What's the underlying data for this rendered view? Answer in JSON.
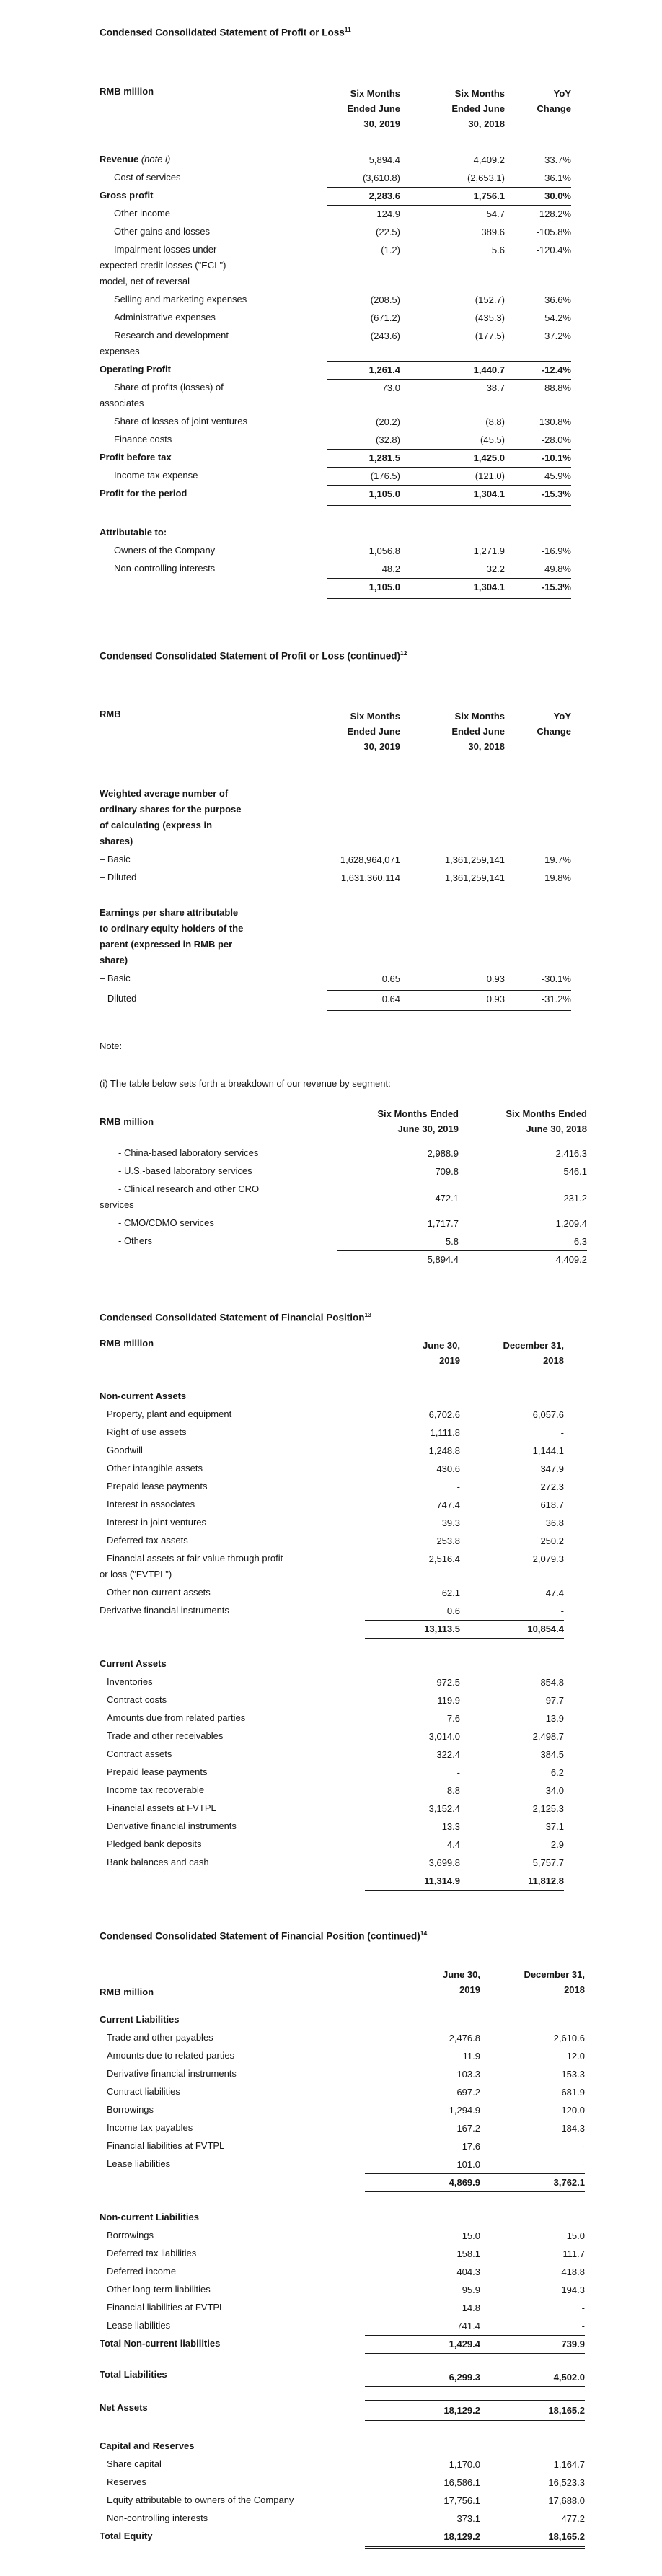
{
  "document_title": "Condensed Consolidated Financial Statements",
  "text_color": "#161616",
  "rule_color": "#1b1b1b",
  "sections": [
    {
      "type": "title",
      "name": "profit-loss-title",
      "text": "Condensed Consolidated Statement of Profit or Loss",
      "sup": "11"
    },
    {
      "type": "gap",
      "h": 64
    },
    {
      "type": "table",
      "name": "profit-loss-table",
      "label_w": 315,
      "cols": [
        102,
        145,
        92
      ],
      "indent": 20,
      "header": {
        "label": "RMB million",
        "mb": 28,
        "align": "top",
        "cols": [
          [
            "Six Months",
            "Ended June",
            "30, 2019"
          ],
          [
            "Six Months",
            "Ended June",
            "30, 2018"
          ],
          [
            "YoY",
            "Change"
          ]
        ]
      },
      "rows": [
        {
          "l": "Revenue",
          "note": " (note i)",
          "lb": true,
          "v": [
            "5,894.4",
            "4,409.2",
            "33.7%"
          ]
        },
        {
          "l": "Cost of services",
          "i": 1,
          "v": [
            "(3,610.8)",
            "(2,653.1)",
            "36.1%"
          ],
          "rb": "s"
        },
        {
          "l": "Gross profit",
          "b": true,
          "v": [
            "2,283.6",
            "1,756.1",
            "30.0%"
          ],
          "rb": "s"
        },
        {
          "l": "Other income",
          "i": 1,
          "v": [
            "124.9",
            "54.7",
            "128.2%"
          ]
        },
        {
          "l": "Other gains and losses",
          "i": 1,
          "v": [
            "(22.5)",
            "389.6",
            "-105.8%"
          ]
        },
        {
          "l": "Impairment losses under",
          "cont": [
            "expected credit losses (\"ECL\")",
            "model, net of reversal"
          ],
          "i": 1,
          "v": [
            "(1.2)",
            "5.6",
            "-120.4%"
          ]
        },
        {
          "l": "Selling and marketing expenses",
          "i": 1,
          "v": [
            "(208.5)",
            "(152.7)",
            "36.6%"
          ]
        },
        {
          "l": "Administrative expenses",
          "i": 1,
          "v": [
            "(671.2)",
            "(435.3)",
            "54.2%"
          ]
        },
        {
          "l": "Research and development",
          "cont": [
            "expenses"
          ],
          "i": 1,
          "v": [
            "(243.6)",
            "(177.5)",
            "37.2%"
          ],
          "rb": "s"
        },
        {
          "l": "Operating Profit",
          "b": true,
          "v": [
            "1,261.4",
            "1,440.7",
            "-12.4%"
          ],
          "rb": "s"
        },
        {
          "l": "Share of profits (losses) of",
          "cont": [
            "associates"
          ],
          "i": 1,
          "v": [
            "73.0",
            "38.7",
            "88.8%"
          ]
        },
        {
          "l": "Share of losses of joint ventures",
          "i": 1,
          "v": [
            "(20.2)",
            "(8.8)",
            "130.8%"
          ]
        },
        {
          "l": "Finance costs",
          "i": 1,
          "v": [
            "(32.8)",
            "(45.5)",
            "-28.0%"
          ],
          "rb": "s"
        },
        {
          "l": "Profit before tax",
          "b": true,
          "v": [
            "1,281.5",
            "1,425.0",
            "-10.1%"
          ],
          "rb": "s"
        },
        {
          "l": "Income tax expense",
          "i": 1,
          "v": [
            "(176.5)",
            "(121.0)",
            "45.9%"
          ],
          "rb": "s"
        },
        {
          "l": "Profit for the period",
          "b": true,
          "v": [
            "1,105.0",
            "1,304.1",
            "-15.3%"
          ],
          "rb": "d"
        },
        {
          "gap": 26
        },
        {
          "l": "Attributable to:",
          "b": true
        },
        {
          "l": "Owners of the Company",
          "i": 1,
          "v": [
            "1,056.8",
            "1,271.9",
            "-16.9%"
          ]
        },
        {
          "l": "Non-controlling interests",
          "i": 1,
          "v": [
            "48.2",
            "32.2",
            "49.8%"
          ],
          "rb": "s"
        },
        {
          "b": true,
          "v": [
            "1,105.0",
            "1,304.1",
            "-15.3%"
          ],
          "rb": "d"
        }
      ]
    },
    {
      "type": "gap",
      "h": 66
    },
    {
      "type": "title",
      "name": "profit-loss-continued-title",
      "text": "Condensed Consolidated Statement of Profit or Loss (continued)",
      "sup": "12"
    },
    {
      "type": "gap",
      "h": 64
    },
    {
      "type": "table",
      "name": "profit-loss-continued-table",
      "label_w": 315,
      "cols": [
        102,
        145,
        92
      ],
      "indent": 20,
      "header": {
        "label": "RMB",
        "mb": 44,
        "align": "top",
        "cols": [
          [
            "Six Months",
            "Ended June",
            "30, 2019"
          ],
          [
            "Six Months",
            "Ended June",
            "30, 2018"
          ],
          [
            "YoY",
            "Change"
          ]
        ]
      },
      "rows": [
        {
          "l": "Weighted average number of",
          "cont": [
            "ordinary shares for the purpose",
            "of calculating (express in",
            "shares)"
          ],
          "lb": true
        },
        {
          "l": "– Basic",
          "v": [
            "1,628,964,071",
            "1,361,259,141",
            "19.7%"
          ]
        },
        {
          "l": "– Diluted",
          "v": [
            "1,631,360,114",
            "1,361,259,141",
            "19.8%"
          ]
        },
        {
          "gap": 24
        },
        {
          "l": "Earnings per share attributable",
          "cont": [
            "to ordinary equity holders of the",
            "parent (expressed in RMB per",
            "share)"
          ],
          "lb": true
        },
        {
          "l": "– Basic",
          "v": [
            "0.65",
            "0.93",
            "-30.1%"
          ],
          "rb": "d"
        },
        {
          "l": "– Diluted",
          "v": [
            "0.64",
            "0.93",
            "-31.2%"
          ],
          "rb": "d"
        }
      ]
    },
    {
      "type": "gap",
      "h": 40
    },
    {
      "type": "text",
      "name": "note-label",
      "text": "Note:"
    },
    {
      "type": "gap",
      "h": 34
    },
    {
      "type": "text",
      "name": "note-i-text",
      "text": "(i) The table below sets forth a breakdown of our revenue by segment:"
    },
    {
      "type": "gap",
      "h": 22
    },
    {
      "type": "table",
      "name": "revenue-segment-table",
      "label_w": 330,
      "cols": [
        168,
        178
      ],
      "indent": 26,
      "header": {
        "label": "RMB million",
        "mb": 12,
        "align": "center",
        "cols": [
          [
            "Six Months Ended",
            "June 30, 2019"
          ],
          [
            "Six Months Ended",
            "June 30, 2018"
          ]
        ]
      },
      "rows": [
        {
          "l": "- China-based laboratory services",
          "i": 1,
          "v": [
            "2,988.9",
            "2,416.3"
          ]
        },
        {
          "l": "- U.S.-based laboratory services",
          "i": 1,
          "v": [
            "709.8",
            "546.1"
          ]
        },
        {
          "l": "- Clinical research and other CRO",
          "cont": [
            "services"
          ],
          "i": 1,
          "c": true,
          "v": [
            "472.1",
            "231.2"
          ]
        },
        {
          "l": "- CMO/CDMO services",
          "i": 1,
          "v": [
            "1,717.7",
            "1,209.4"
          ]
        },
        {
          "l": "- Others",
          "i": 1,
          "v": [
            "5.8",
            "6.3"
          ],
          "rb": "s"
        },
        {
          "v": [
            "5,894.4",
            "4,409.2"
          ],
          "rb": "s"
        }
      ]
    },
    {
      "type": "gap",
      "h": 54
    },
    {
      "type": "title",
      "name": "financial-position-title",
      "text": "Condensed Consolidated Statement of Financial Position",
      "sup": "13"
    },
    {
      "type": "gap",
      "h": 18
    },
    {
      "type": "table",
      "name": "financial-position-table",
      "label_w": 368,
      "cols": [
        132,
        144
      ],
      "indent": 10,
      "header": {
        "label": "RMB million",
        "mb": 28,
        "align": "top",
        "cols": [
          [
            "June 30,",
            "2019"
          ],
          [
            "December 31,",
            "2018"
          ]
        ]
      },
      "rows": [
        {
          "l": "Non-current Assets",
          "b": true
        },
        {
          "l": "Property, plant and equipment",
          "i": 1,
          "v": [
            "6,702.6",
            "6,057.6"
          ]
        },
        {
          "l": "Right of use assets",
          "i": 1,
          "v": [
            "1,111.8",
            "-"
          ]
        },
        {
          "l": "Goodwill",
          "i": 1,
          "v": [
            "1,248.8",
            "1,144.1"
          ]
        },
        {
          "l": "Other intangible assets",
          "i": 1,
          "v": [
            "430.6",
            "347.9"
          ]
        },
        {
          "l": "Prepaid lease payments",
          "i": 1,
          "v": [
            "-",
            "272.3"
          ]
        },
        {
          "l": "Interest in associates",
          "i": 1,
          "v": [
            "747.4",
            "618.7"
          ]
        },
        {
          "l": "Interest in joint ventures",
          "i": 1,
          "v": [
            "39.3",
            "36.8"
          ]
        },
        {
          "l": "Deferred tax assets",
          "i": 1,
          "v": [
            "253.8",
            "250.2"
          ]
        },
        {
          "l": "Financial assets at fair value through profit",
          "cont": [
            "or loss (\"FVTPL\")"
          ],
          "i": 1,
          "v": [
            "2,516.4",
            "2,079.3"
          ]
        },
        {
          "l": "Other non-current assets",
          "i": 1,
          "v": [
            "62.1",
            "47.4"
          ]
        },
        {
          "l": "Derivative financial instruments",
          "v": [
            "0.6",
            "-"
          ],
          "rb": "s"
        },
        {
          "b": true,
          "v": [
            "13,113.5",
            "10,854.4"
          ],
          "rb": "s"
        },
        {
          "gap": 24
        },
        {
          "l": "Current Assets",
          "b": true
        },
        {
          "l": "Inventories",
          "i": 1,
          "v": [
            "972.5",
            "854.8"
          ]
        },
        {
          "l": "Contract costs",
          "i": 1,
          "v": [
            "119.9",
            "97.7"
          ]
        },
        {
          "l": "Amounts due from related parties",
          "i": 1,
          "v": [
            "7.6",
            "13.9"
          ]
        },
        {
          "l": "Trade and other receivables",
          "i": 1,
          "v": [
            "3,014.0",
            "2,498.7"
          ]
        },
        {
          "l": "Contract assets",
          "i": 1,
          "v": [
            "322.4",
            "384.5"
          ]
        },
        {
          "l": "Prepaid lease payments",
          "i": 1,
          "v": [
            "-",
            "6.2"
          ]
        },
        {
          "l": "Income tax recoverable",
          "i": 1,
          "v": [
            "8.8",
            "34.0"
          ]
        },
        {
          "l": "Financial assets at FVTPL",
          "i": 1,
          "v": [
            "3,152.4",
            "2,125.3"
          ]
        },
        {
          "l": "Derivative financial instruments",
          "i": 1,
          "v": [
            "13.3",
            "37.1"
          ]
        },
        {
          "l": "Pledged bank deposits",
          "i": 1,
          "v": [
            "4.4",
            "2.9"
          ]
        },
        {
          "l": "Bank balances and cash",
          "i": 1,
          "v": [
            "3,699.8",
            "5,757.7"
          ],
          "rb": "s"
        },
        {
          "b": true,
          "v": [
            "11,314.9",
            "11,812.8"
          ],
          "rb": "s"
        }
      ]
    },
    {
      "type": "gap",
      "h": 50
    },
    {
      "type": "title",
      "name": "financial-position-continued-title",
      "text": "Condensed Consolidated Statement of Financial Position (continued)",
      "sup": "14"
    },
    {
      "type": "gap",
      "h": 34
    },
    {
      "type": "table",
      "name": "financial-position-continued-table",
      "label_w": 368,
      "cols": [
        160,
        145
      ],
      "indent": 10,
      "header": {
        "label": "RMB million",
        "mb": 20,
        "align": "bottom",
        "cols": [
          [
            "June 30,",
            "2019"
          ],
          [
            "December 31,",
            "2018"
          ]
        ]
      },
      "rows": [
        {
          "l": "Current Liabilities",
          "b": true
        },
        {
          "l": "Trade and other payables",
          "i": 1,
          "v": [
            "2,476.8",
            "2,610.6"
          ]
        },
        {
          "l": "Amounts due to related parties",
          "i": 1,
          "v": [
            "11.9",
            "12.0"
          ]
        },
        {
          "l": "Derivative financial instruments",
          "i": 1,
          "v": [
            "103.3",
            "153.3"
          ]
        },
        {
          "l": "Contract liabilities",
          "i": 1,
          "v": [
            "697.2",
            "681.9"
          ]
        },
        {
          "l": "Borrowings",
          "i": 1,
          "v": [
            "1,294.9",
            "120.0"
          ]
        },
        {
          "l": "Income tax payables",
          "i": 1,
          "v": [
            "167.2",
            "184.3"
          ]
        },
        {
          "l": "Financial liabilities at FVTPL",
          "i": 1,
          "v": [
            "17.6",
            "-"
          ]
        },
        {
          "l": "Lease liabilities",
          "i": 1,
          "v": [
            "101.0",
            "-"
          ],
          "rb": "s"
        },
        {
          "b": true,
          "v": [
            "4,869.9",
            "3,762.1"
          ],
          "rb": "s"
        },
        {
          "gap": 24
        },
        {
          "l": "Non-current Liabilities",
          "b": true
        },
        {
          "l": "Borrowings",
          "i": 1,
          "v": [
            "15.0",
            "15.0"
          ]
        },
        {
          "l": "Deferred tax liabilities",
          "i": 1,
          "v": [
            "158.1",
            "111.7"
          ]
        },
        {
          "l": "Deferred income",
          "i": 1,
          "v": [
            "404.3",
            "418.8"
          ]
        },
        {
          "l": "Other long-term liabilities",
          "i": 1,
          "v": [
            "95.9",
            "194.3"
          ]
        },
        {
          "l": "Financial liabilities at FVTPL",
          "i": 1,
          "v": [
            "14.8",
            "-"
          ]
        },
        {
          "l": "Lease liabilities",
          "i": 1,
          "v": [
            "741.4",
            "-"
          ],
          "rb": "s"
        },
        {
          "l": "Total Non-current liabilities",
          "b": true,
          "v": [
            "1,429.4",
            "739.9"
          ],
          "rb": "s"
        },
        {
          "gap": 18
        },
        {
          "l": "Total Liabilities",
          "b": true,
          "v": [
            "6,299.3",
            "4,502.0"
          ],
          "rt": "s",
          "rb": "s"
        },
        {
          "gap": 18
        },
        {
          "l": "Net Assets",
          "b": true,
          "v": [
            "18,129.2",
            "18,165.2"
          ],
          "rt": "s",
          "rb": "d"
        },
        {
          "gap": 22
        },
        {
          "l": "Capital and Reserves",
          "b": true
        },
        {
          "l": "Share capital",
          "i": 1,
          "v": [
            "1,170.0",
            "1,164.7"
          ]
        },
        {
          "l": "Reserves",
          "i": 1,
          "v": [
            "16,586.1",
            "16,523.3"
          ],
          "rb": "s"
        },
        {
          "l": "Equity attributable to owners of the Company",
          "i": 1,
          "v": [
            "17,756.1",
            "17,688.0"
          ]
        },
        {
          "l": "Non-controlling interests",
          "i": 1,
          "v": [
            "373.1",
            "477.2"
          ],
          "rb": "s"
        },
        {
          "l": "Total Equity",
          "b": true,
          "v": [
            "18,129.2",
            "18,165.2"
          ],
          "rb": "d"
        }
      ]
    }
  ]
}
